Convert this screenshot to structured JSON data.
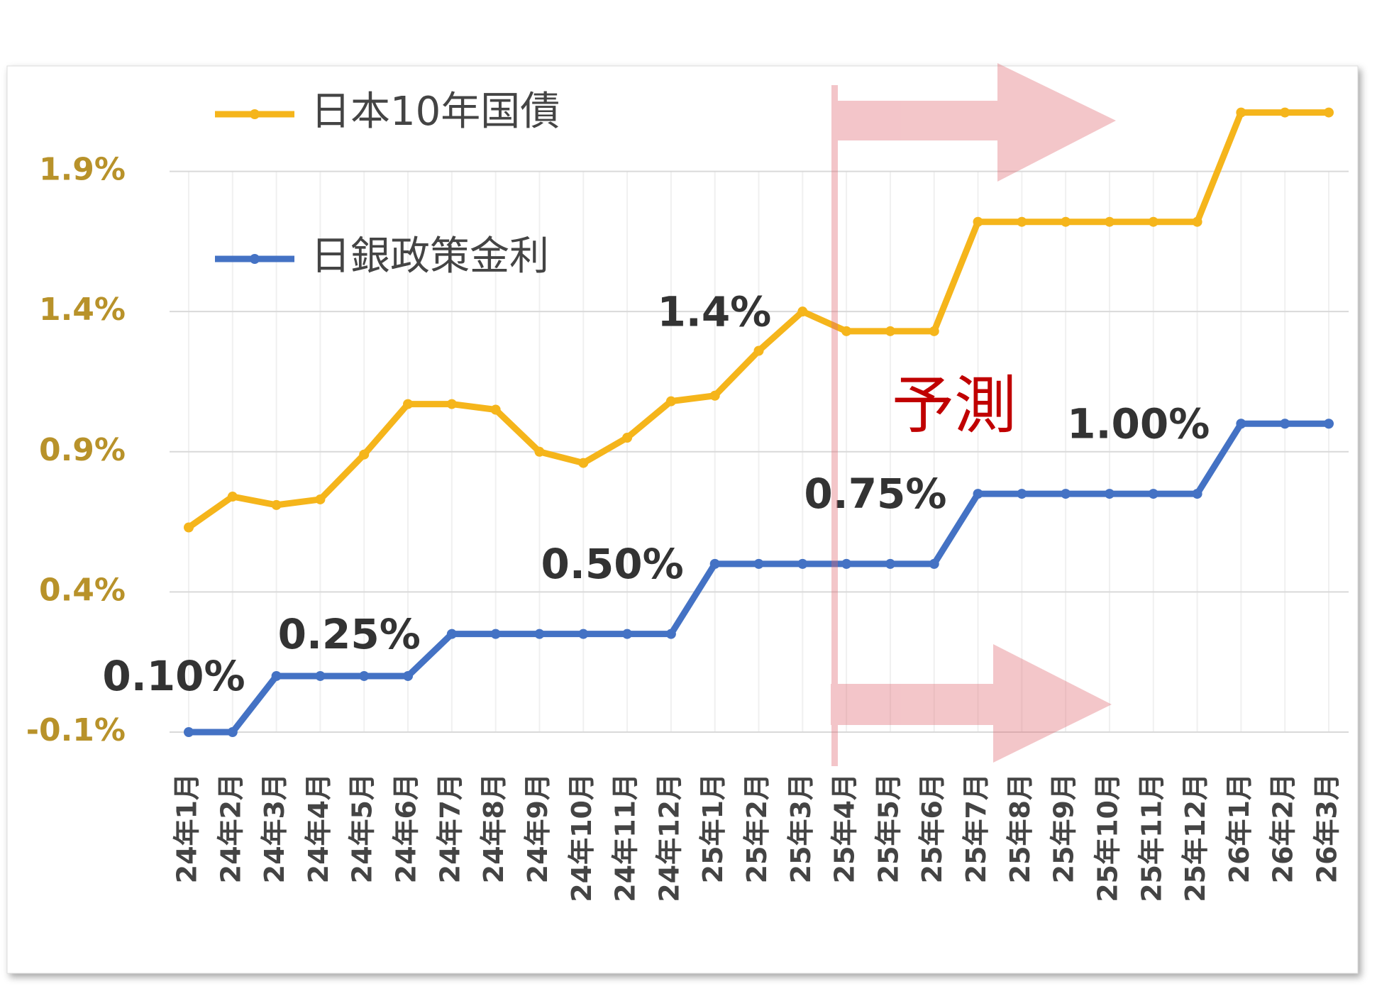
{
  "chart_data": {
    "type": "line",
    "categories": [
      "24年1月",
      "24年2月",
      "24年3月",
      "24年4月",
      "24年5月",
      "24年6月",
      "24年7月",
      "24年8月",
      "24年9月",
      "24年10月",
      "24年11月",
      "24年12月",
      "25年1月",
      "25年2月",
      "25年3月",
      "25年4月",
      "25年5月",
      "25年6月",
      "25年7月",
      "25年8月",
      "25年9月",
      "25年10月",
      "25年11月",
      "25年12月",
      "26年1月",
      "26年2月",
      "26年3月"
    ],
    "series": [
      {
        "name": "日本10年国債",
        "color": "#f5b51b",
        "values": [
          0.63,
          0.74,
          0.71,
          0.73,
          0.89,
          1.07,
          1.07,
          1.05,
          0.9,
          0.86,
          0.95,
          1.08,
          1.1,
          1.26,
          1.4,
          1.33,
          1.33,
          1.33,
          1.72,
          1.72,
          1.72,
          1.72,
          1.72,
          1.72,
          2.11,
          2.11,
          2.11
        ],
        "value_labels": [
          null,
          null,
          null,
          null,
          null,
          null,
          null,
          null,
          null,
          null,
          null,
          null,
          null,
          null,
          "1.4%",
          null,
          null,
          null,
          null,
          null,
          null,
          null,
          null,
          null,
          null,
          null,
          null
        ]
      },
      {
        "name": "日銀政策金利",
        "color": "#4472c4",
        "values": [
          -0.1,
          -0.1,
          0.1,
          0.1,
          0.1,
          0.1,
          0.25,
          0.25,
          0.25,
          0.25,
          0.25,
          0.25,
          0.5,
          0.5,
          0.5,
          0.5,
          0.5,
          0.5,
          0.75,
          0.75,
          0.75,
          0.75,
          0.75,
          0.75,
          1.0,
          1.0,
          1.0
        ],
        "value_labels": [
          null,
          null,
          "0.10%",
          null,
          null,
          null,
          "0.25%",
          null,
          null,
          null,
          null,
          null,
          "0.50%",
          null,
          null,
          null,
          null,
          null,
          "0.75%",
          null,
          null,
          null,
          null,
          null,
          "1.00%",
          null,
          null
        ]
      }
    ],
    "ylim": [
      -0.1,
      2.2
    ],
    "yticks": [
      {
        "value": -0.1,
        "label": "-0.1%"
      },
      {
        "value": 0.4,
        "label": "0.4%"
      },
      {
        "value": 0.9,
        "label": "0.9%"
      },
      {
        "value": 1.4,
        "label": "1.4%"
      },
      {
        "value": 1.9,
        "label": "1.9%"
      }
    ],
    "grid": true,
    "legend": "upper left",
    "annotation": "予測"
  }
}
